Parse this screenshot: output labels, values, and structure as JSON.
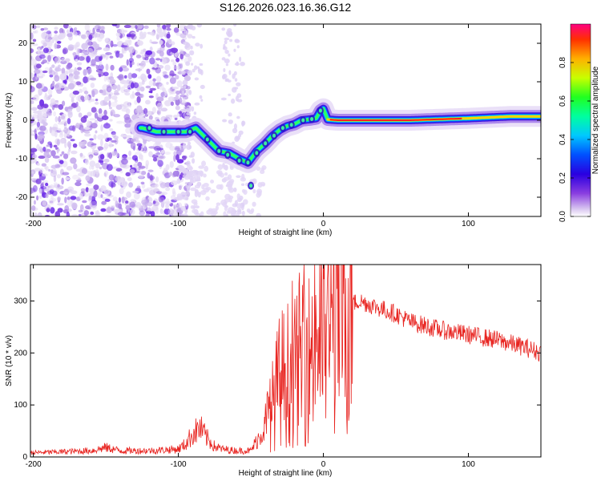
{
  "title": "S126.2026.023.16.36.G12",
  "chart_data": [
    {
      "type": "heatmap",
      "title": "",
      "xlabel": "Height of straight line (km)",
      "ylabel": "Frequency (Hz)",
      "xlim": [
        -202,
        150
      ],
      "ylim": [
        -25,
        25
      ],
      "x_ticks": [
        -200,
        -100,
        0,
        100
      ],
      "y_ticks": [
        20,
        10,
        0,
        -10,
        -20
      ],
      "colorbar": {
        "label": "Normalized spectral amplitude",
        "range": [
          0.0,
          1.0
        ],
        "ticks": [
          0.0,
          0.2,
          0.4,
          0.6,
          0.8
        ]
      },
      "ridge": {
        "x": [
          -125,
          -115,
          -105,
          -95,
          -88,
          -80,
          -72,
          -65,
          -58,
          -52,
          -46,
          -40,
          -35,
          -30,
          -25,
          -20,
          -15,
          -10,
          -5,
          -2,
          0,
          3,
          10,
          30,
          60,
          100,
          130,
          150
        ],
        "y": [
          -2,
          -3,
          -3,
          -3,
          -2,
          -5,
          -8,
          -8.5,
          -10,
          -11,
          -8,
          -6,
          -4,
          -2.5,
          -1.5,
          -1,
          0,
          0.2,
          0.5,
          2.5,
          3,
          0.2,
          0,
          0,
          0,
          0.5,
          1,
          1
        ]
      }
    },
    {
      "type": "line",
      "title": "",
      "xlabel": "Height of straight line (km)",
      "ylabel": "SNR (10 * v/v)",
      "xlim": [
        -202,
        150
      ],
      "ylim": [
        0,
        370
      ],
      "x_ticks": [
        -200,
        -100,
        0,
        100
      ],
      "y_ticks": [
        0,
        100,
        200,
        300
      ],
      "series": [
        {
          "name": "SNR",
          "color": "#e8231f",
          "x": [
            -202,
            -180,
            -160,
            -150,
            -140,
            -120,
            -100,
            -95,
            -90,
            -85,
            -80,
            -75,
            -70,
            -60,
            -50,
            -40,
            -35,
            -30,
            -25,
            -20,
            -15,
            -10,
            -5,
            0,
            5,
            10,
            15,
            20,
            25,
            30,
            40,
            50,
            60,
            80,
            100,
            120,
            140,
            150
          ],
          "values": [
            8,
            10,
            12,
            18,
            12,
            12,
            15,
            25,
            45,
            55,
            35,
            20,
            15,
            12,
            12,
            60,
            100,
            150,
            160,
            160,
            200,
            190,
            240,
            240,
            250,
            270,
            290,
            295,
            300,
            295,
            285,
            275,
            260,
            245,
            235,
            225,
            210,
            200
          ]
        }
      ]
    }
  ]
}
